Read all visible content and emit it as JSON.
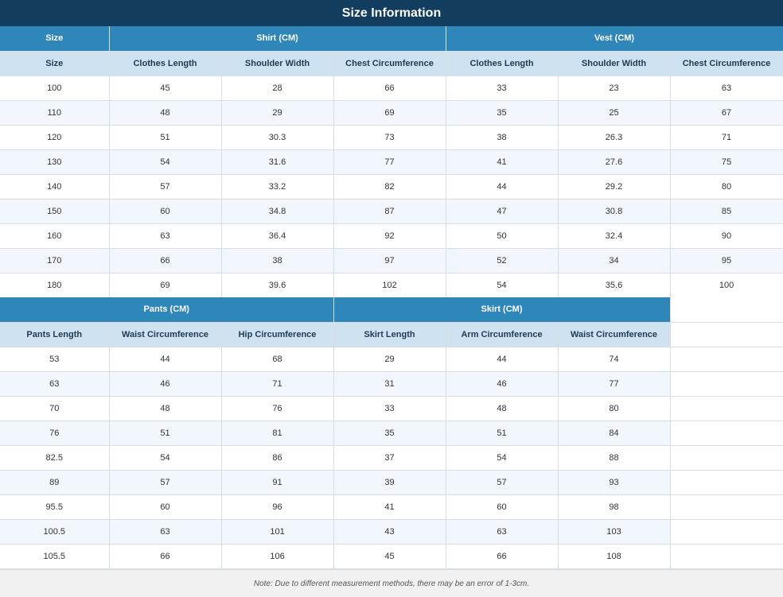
{
  "title": "Size Information",
  "colors": {
    "title_bg": "#133d5e",
    "group_header_bg": "#2f86b9",
    "sub_header_bg": "#cfe2f1",
    "row_alt_bg": "#f1f7fc"
  },
  "table1": {
    "groups": [
      "Size",
      "Shirt (CM)",
      "Vest (CM)"
    ],
    "headers": [
      "Size",
      "Clothes Length",
      "Shoulder Width",
      "Chest Circumference",
      "Clothes Length",
      "Shoulder Width",
      "Chest Circumference"
    ],
    "rows": [
      [
        "100",
        "45",
        "28",
        "66",
        "33",
        "23",
        "63"
      ],
      [
        "110",
        "48",
        "29",
        "69",
        "35",
        "25",
        "67"
      ],
      [
        "120",
        "51",
        "30.3",
        "73",
        "38",
        "26.3",
        "71"
      ],
      [
        "130",
        "54",
        "31.6",
        "77",
        "41",
        "27.6",
        "75"
      ],
      [
        "140",
        "57",
        "33.2",
        "82",
        "44",
        "29.2",
        "80"
      ],
      [
        "150",
        "60",
        "34.8",
        "87",
        "47",
        "30.8",
        "85"
      ],
      [
        "160",
        "63",
        "36.4",
        "92",
        "50",
        "32.4",
        "90"
      ],
      [
        "170",
        "66",
        "38",
        "97",
        "52",
        "34",
        "95"
      ],
      [
        "180",
        "69",
        "39.6",
        "102",
        "54",
        "35.6",
        "100"
      ]
    ]
  },
  "table2": {
    "groups": [
      "Pants (CM)",
      "Skirt (CM)"
    ],
    "headers": [
      "Pants Length",
      "Waist Circumference",
      "Hip Circumference",
      "Skirt Length",
      "Arm Circumference",
      "Waist Circumference"
    ],
    "rows": [
      [
        "53",
        "44",
        "68",
        "29",
        "44",
        "74"
      ],
      [
        "63",
        "46",
        "71",
        "31",
        "46",
        "77"
      ],
      [
        "70",
        "48",
        "76",
        "33",
        "48",
        "80"
      ],
      [
        "76",
        "51",
        "81",
        "35",
        "51",
        "84"
      ],
      [
        "82.5",
        "54",
        "86",
        "37",
        "54",
        "88"
      ],
      [
        "89",
        "57",
        "91",
        "39",
        "57",
        "93"
      ],
      [
        "95.5",
        "60",
        "96",
        "41",
        "60",
        "98"
      ],
      [
        "100.5",
        "63",
        "101",
        "43",
        "63",
        "103"
      ],
      [
        "105.5",
        "66",
        "106",
        "45",
        "66",
        "108"
      ]
    ]
  },
  "note": "Note: Due to different measurement methods, there may be an error of 1-3cm."
}
